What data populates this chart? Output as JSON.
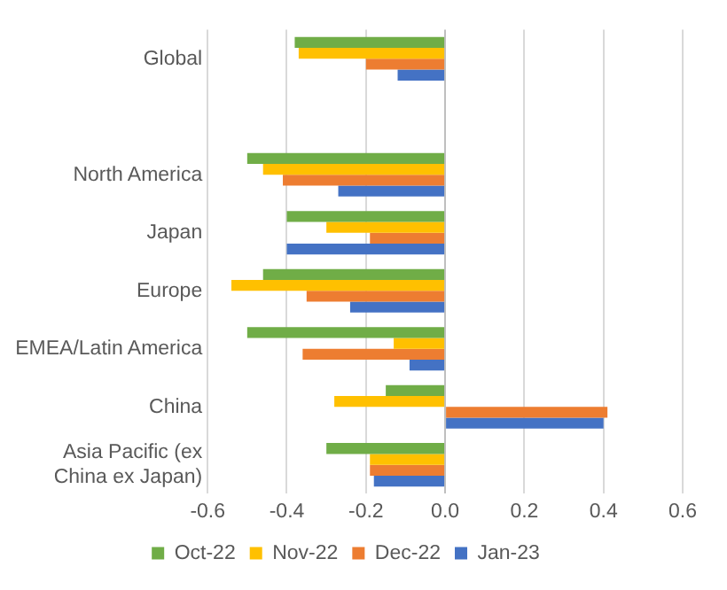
{
  "chart_data": {
    "type": "bar",
    "orientation": "horizontal",
    "categories": [
      "Global",
      null,
      "North America",
      "Japan",
      "Europe",
      "EMEA/Latin America",
      "China",
      "Asia Pacific (ex China ex Japan)"
    ],
    "series": [
      {
        "name": "Oct-22",
        "color": "#70ad47",
        "values": [
          -0.38,
          null,
          -0.5,
          -0.4,
          -0.46,
          -0.5,
          -0.15,
          -0.3
        ]
      },
      {
        "name": "Nov-22",
        "color": "#ffc000",
        "values": [
          -0.37,
          null,
          -0.46,
          -0.3,
          -0.54,
          -0.13,
          -0.28,
          -0.19
        ]
      },
      {
        "name": "Dec-22",
        "color": "#ed7d31",
        "values": [
          -0.2,
          null,
          -0.41,
          -0.19,
          -0.35,
          -0.36,
          0.41,
          -0.19
        ]
      },
      {
        "name": "Jan-23",
        "color": "#4472c4",
        "values": [
          -0.12,
          null,
          -0.27,
          -0.4,
          -0.24,
          -0.09,
          0.4,
          -0.18
        ]
      }
    ],
    "xlim": [
      -0.6,
      0.6
    ],
    "xticks": [
      {
        "value": -0.6,
        "label": "-0.6"
      },
      {
        "value": -0.4,
        "label": "-0.4"
      },
      {
        "value": -0.2,
        "label": "-0.2"
      },
      {
        "value": 0,
        "label": "0.0"
      },
      {
        "value": 0.2,
        "label": "0.2"
      },
      {
        "value": 0.4,
        "label": "0.4"
      },
      {
        "value": 0.6,
        "label": "0.6"
      }
    ],
    "grid": "x",
    "legend": "bottom"
  }
}
